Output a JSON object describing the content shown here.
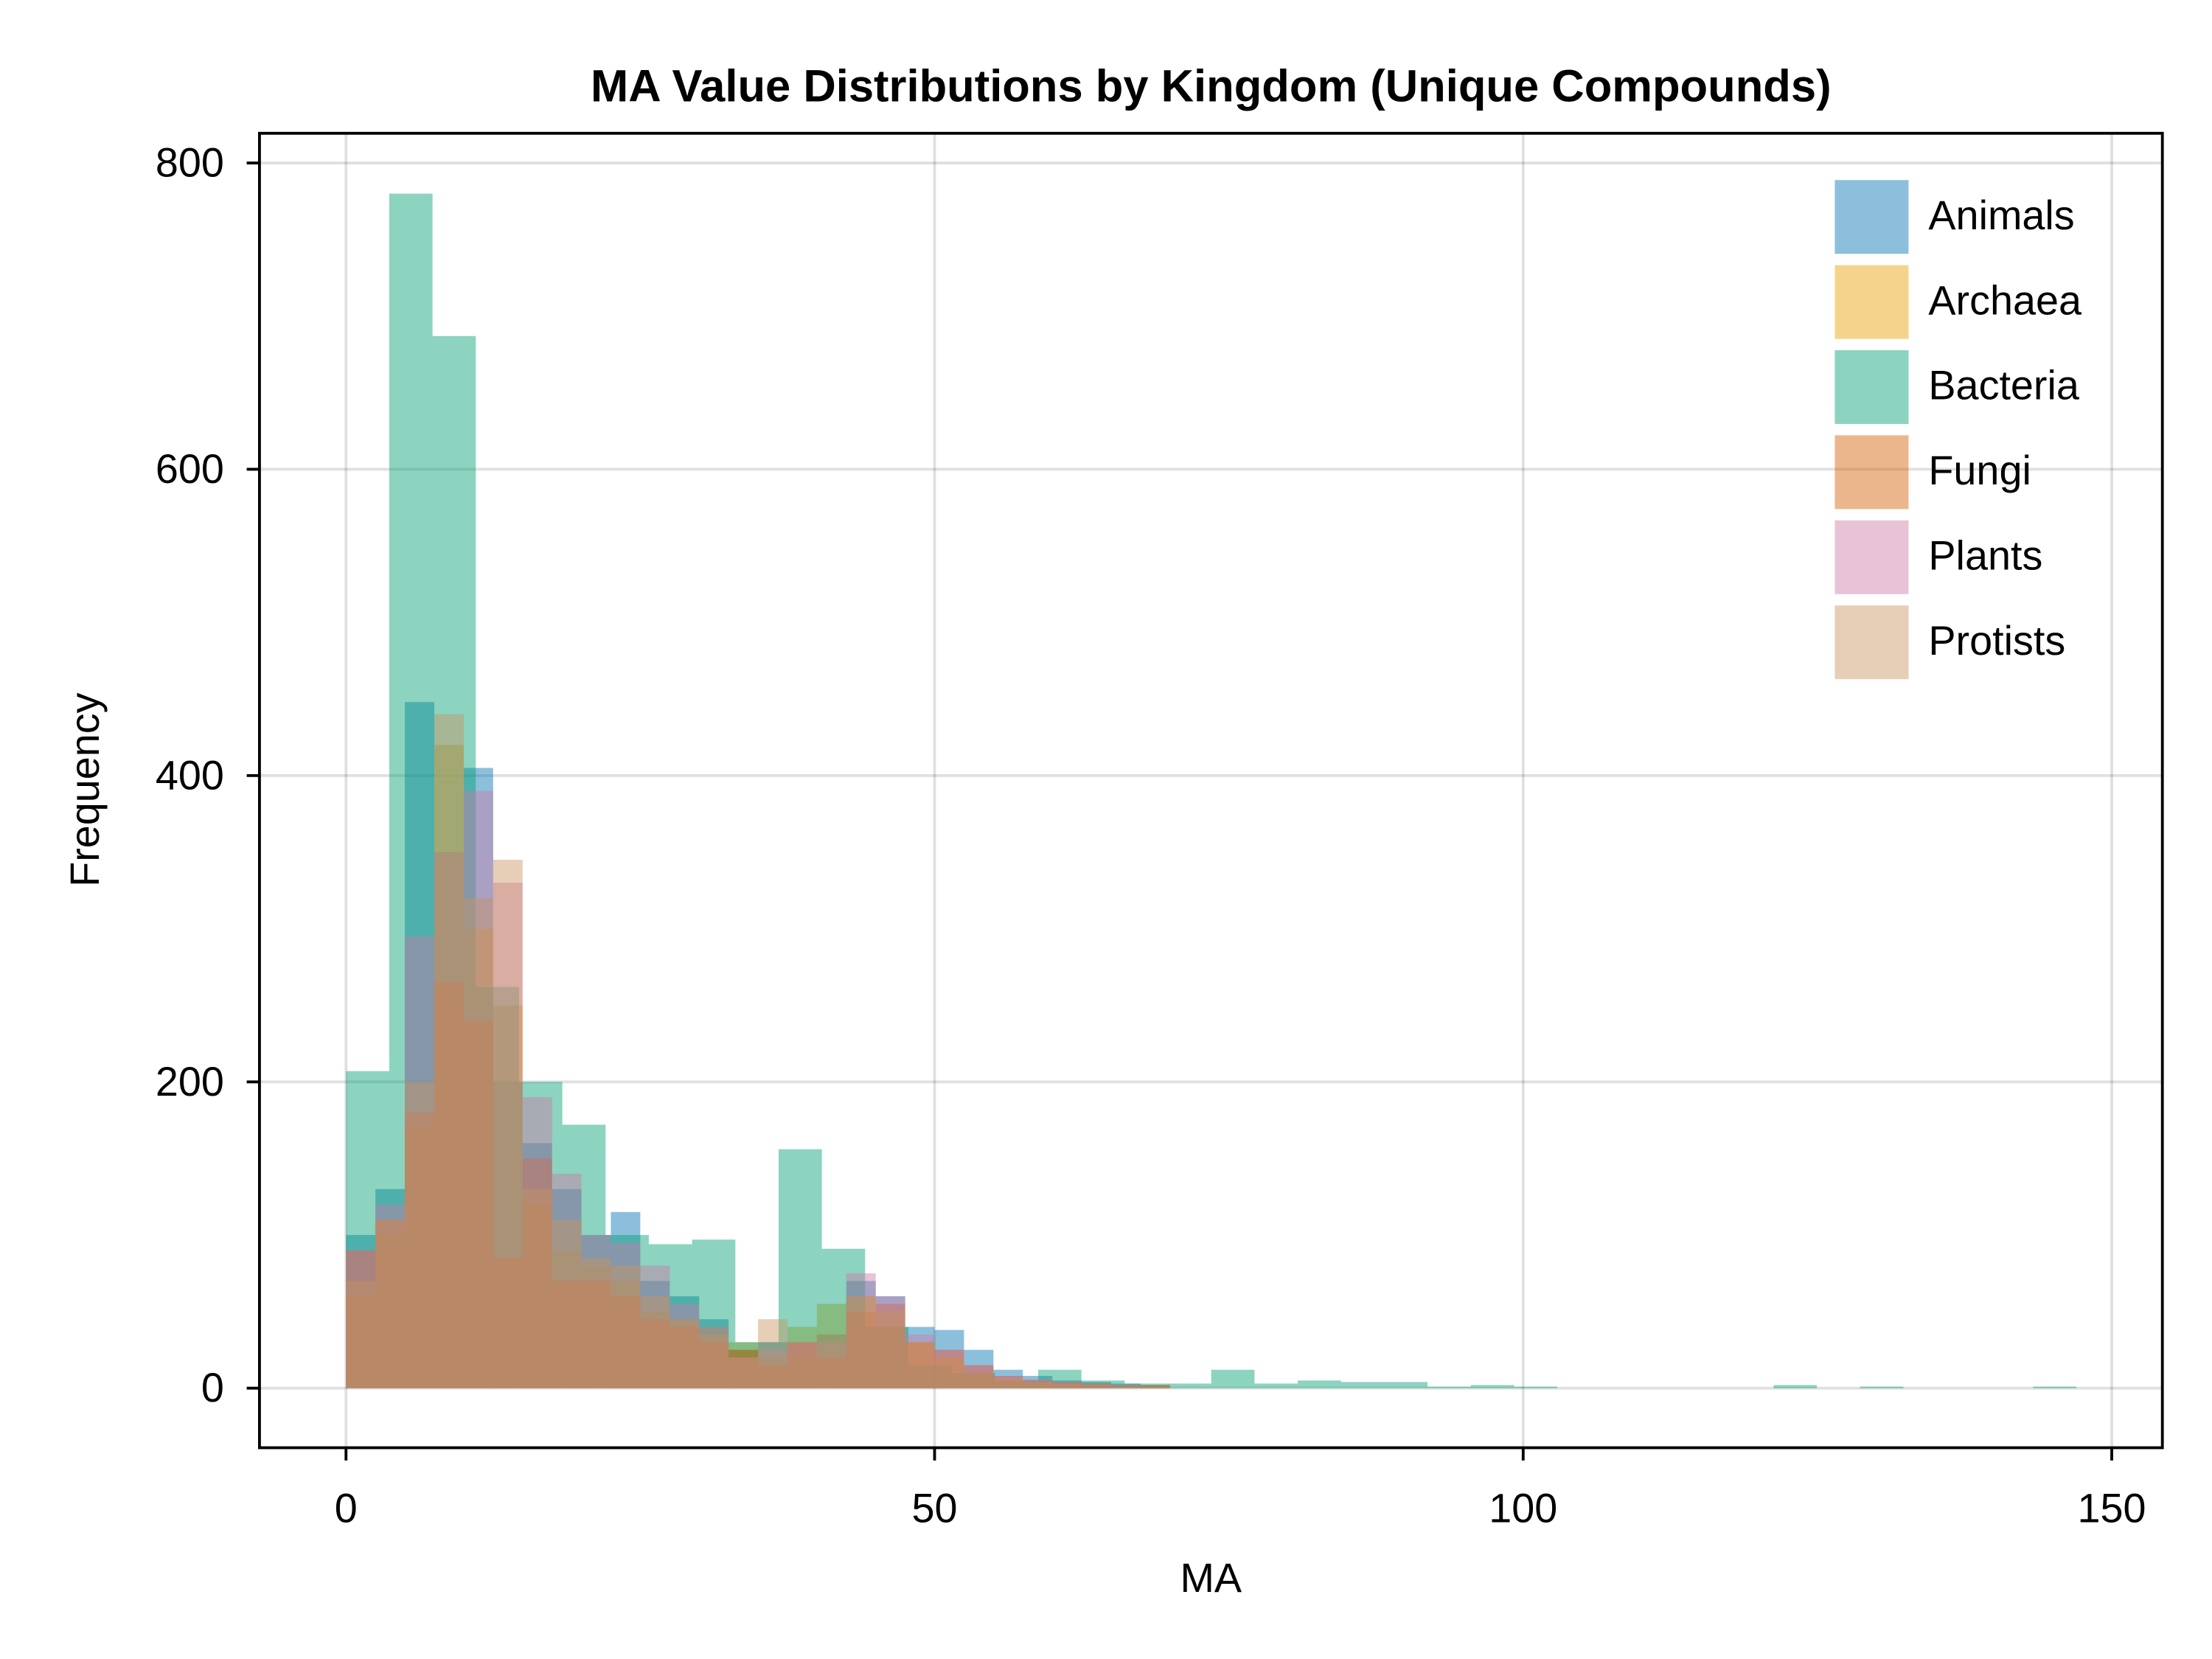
{
  "chart_data": {
    "type": "histogram",
    "title": "MA Value Distributions by Kingdom (Unique Compounds)",
    "x_label": "MA",
    "y_label": "Frequency",
    "xlim": [
      -7.35,
      154.3
    ],
    "ylim": [
      -38.9,
      819.4
    ],
    "xticks": [
      0,
      50,
      100,
      150
    ],
    "yticks": [
      0,
      200,
      400,
      600,
      800
    ],
    "grid": true,
    "legend": "upper-right",
    "alpha": 0.45,
    "series": [
      {
        "name": "Animals",
        "color": "#0072b2",
        "bins": [
          0,
          2.5,
          5,
          7.5,
          10,
          12.5,
          15,
          17.5,
          20,
          22.5,
          25,
          27.5,
          30,
          32.5,
          35,
          37.5,
          40,
          42.5,
          45,
          47.5,
          50,
          52.5,
          55,
          57.5,
          60,
          62.5,
          65,
          67.5,
          70
        ],
        "values": [
          100,
          130,
          448,
          350,
          405,
          200,
          160,
          130,
          100,
          115,
          70,
          60,
          45,
          25,
          30,
          20,
          35,
          70,
          60,
          40,
          38,
          25,
          12,
          8,
          5,
          4,
          3,
          2
        ]
      },
      {
        "name": "Archaea",
        "color": "#e69f00",
        "bins": [
          0,
          2.5,
          5,
          7.5,
          10,
          12.5,
          15,
          17.5,
          20,
          22.5,
          25,
          27.5,
          30,
          32.5,
          35,
          37.5,
          40,
          42.5,
          45,
          47.5,
          50,
          52.5,
          55,
          57.5,
          60,
          62.5,
          65,
          67.5,
          70
        ],
        "values": [
          60,
          100,
          170,
          420,
          300,
          250,
          120,
          90,
          80,
          70,
          50,
          45,
          40,
          30,
          20,
          40,
          55,
          60,
          40,
          30,
          20,
          10,
          5,
          3,
          2,
          2,
          1,
          1
        ]
      },
      {
        "name": "Bacteria",
        "color": "#009e73",
        "bins": [
          0,
          3.675,
          7.35,
          11.025,
          14.7,
          18.375,
          22.05,
          25.725,
          29.4,
          33.075,
          36.75,
          40.425,
          44.1,
          47.775,
          51.45,
          55.125,
          58.8,
          62.475,
          66.15,
          69.825,
          73.5,
          77.175,
          80.85,
          84.525,
          88.2,
          91.875,
          95.55,
          99.225,
          102.9,
          106.575,
          110.25,
          113.925,
          117.6,
          121.275,
          124.95,
          128.625,
          132.3,
          135.975,
          139.65,
          143.325,
          147
        ],
        "values": [
          207,
          780,
          687,
          262,
          200,
          172,
          100,
          94,
          97,
          30,
          156,
          91,
          40,
          15,
          10,
          5,
          12,
          5,
          3,
          3,
          12,
          3,
          5,
          4,
          4,
          1,
          2,
          1,
          0,
          0,
          0,
          0,
          0,
          2,
          0,
          1,
          0,
          0,
          0,
          1
        ]
      },
      {
        "name": "Fungi",
        "color": "#d55e00",
        "bins": [
          0,
          2.5,
          5,
          7.5,
          10,
          12.5,
          15,
          17.5,
          20,
          22.5,
          25,
          27.5,
          30,
          32.5,
          35,
          37.5,
          40,
          42.5,
          45,
          47.5,
          50,
          52.5,
          55,
          57.5,
          60,
          62.5,
          65,
          67.5,
          70
        ],
        "values": [
          90,
          110,
          180,
          265,
          240,
          85,
          150,
          70,
          70,
          60,
          45,
          40,
          30,
          25,
          15,
          30,
          20,
          50,
          55,
          30,
          25,
          15,
          8,
          5,
          4,
          3,
          2,
          2
        ]
      },
      {
        "name": "Plants",
        "color": "#cc79a7",
        "bins": [
          0,
          2.5,
          5,
          7.5,
          10,
          12.5,
          15,
          17.5,
          20,
          22.5,
          25,
          27.5,
          30,
          32.5,
          35,
          37.5,
          40,
          42.5,
          45,
          47.5,
          50,
          52.5,
          55,
          57.5,
          60,
          62.5,
          65,
          67.5,
          70
        ],
        "values": [
          90,
          120,
          295,
          350,
          390,
          330,
          190,
          140,
          100,
          95,
          80,
          55,
          40,
          20,
          25,
          30,
          30,
          75,
          60,
          35,
          25,
          15,
          8,
          6,
          4,
          3,
          2,
          1
        ]
      },
      {
        "name": "Protists",
        "color": "#c8935f",
        "bins": [
          0,
          2.5,
          5,
          7.5,
          10,
          12.5,
          15,
          17.5,
          20,
          22.5,
          25,
          27.5,
          30,
          32.5,
          35,
          37.5,
          40,
          42.5,
          45,
          47.5,
          50,
          52.5,
          55,
          57.5,
          60,
          62.5,
          65,
          67.5,
          70
        ],
        "values": [
          70,
          110,
          200,
          440,
          320,
          345,
          130,
          110,
          85,
          80,
          60,
          45,
          35,
          20,
          45,
          20,
          35,
          60,
          50,
          30,
          20,
          10,
          6,
          4,
          3,
          2,
          1,
          1
        ]
      }
    ]
  }
}
